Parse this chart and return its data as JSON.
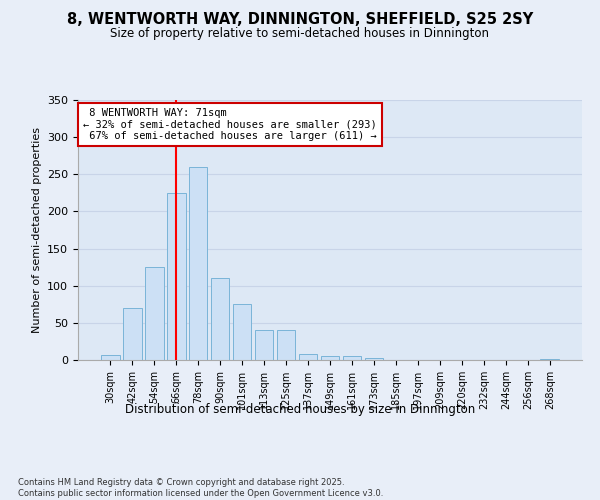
{
  "title": "8, WENTWORTH WAY, DINNINGTON, SHEFFIELD, S25 2SY",
  "subtitle": "Size of property relative to semi-detached houses in Dinnington",
  "xlabel": "Distribution of semi-detached houses by size in Dinnington",
  "ylabel": "Number of semi-detached properties",
  "categories": [
    "30sqm",
    "42sqm",
    "54sqm",
    "66sqm",
    "78sqm",
    "90sqm",
    "101sqm",
    "113sqm",
    "125sqm",
    "137sqm",
    "149sqm",
    "161sqm",
    "173sqm",
    "185sqm",
    "197sqm",
    "209sqm",
    "220sqm",
    "232sqm",
    "244sqm",
    "256sqm",
    "268sqm"
  ],
  "values": [
    7,
    70,
    125,
    225,
    260,
    110,
    75,
    40,
    40,
    8,
    6,
    5,
    3,
    0,
    0,
    0,
    0,
    0,
    0,
    0,
    2
  ],
  "bar_color": "#cce0f5",
  "bar_edge_color": "#7ab4d8",
  "grid_color": "#c8d4e8",
  "background_color": "#dde8f5",
  "fig_background_color": "#e8eef8",
  "red_line_index": 3,
  "property_size": "71sqm",
  "property_name": "8 WENTWORTH WAY",
  "pct_smaller": 32,
  "count_smaller": 293,
  "pct_larger": 67,
  "count_larger": 611,
  "annotation_box_color": "#cc0000",
  "ylim": [
    0,
    350
  ],
  "yticks": [
    0,
    50,
    100,
    150,
    200,
    250,
    300,
    350
  ],
  "footnote": "Contains HM Land Registry data © Crown copyright and database right 2025.\nContains public sector information licensed under the Open Government Licence v3.0."
}
